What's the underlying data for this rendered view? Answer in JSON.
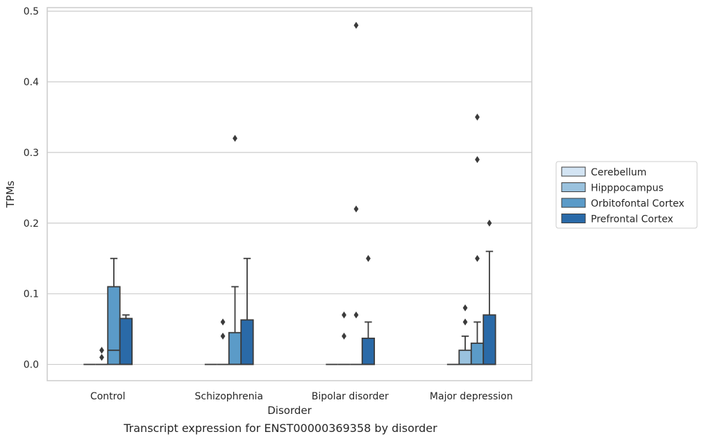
{
  "chart_data": {
    "type": "box",
    "caption": "Transcript expression for ENST00000369358 by disorder",
    "xlabel": "Disorder",
    "ylabel": "TPMs",
    "ylim": [
      -0.023,
      0.505
    ],
    "yticks": [
      0.0,
      0.1,
      0.2,
      0.3,
      0.4,
      0.5
    ],
    "ytick_labels": [
      "0.0",
      "0.1",
      "0.2",
      "0.3",
      "0.4",
      "0.5"
    ],
    "grid": true,
    "legend_position": "right",
    "categories": [
      "Control",
      "Schizophrenia",
      "Bipolar disorder",
      "Major depression"
    ],
    "series": [
      {
        "name": "Cerebellum",
        "color": "#d3e4f3",
        "boxes": [
          {
            "q1": 0,
            "median": 0,
            "q3": 0,
            "whisker_low": 0,
            "whisker_high": 0,
            "outliers": []
          },
          {
            "q1": 0,
            "median": 0,
            "q3": 0,
            "whisker_low": 0,
            "whisker_high": 0,
            "outliers": []
          },
          {
            "q1": 0,
            "median": 0,
            "q3": 0,
            "whisker_low": 0,
            "whisker_high": 0,
            "outliers": []
          },
          {
            "q1": 0,
            "median": 0,
            "q3": 0,
            "whisker_low": 0,
            "whisker_high": 0,
            "outliers": []
          }
        ]
      },
      {
        "name": "Hipppocampus",
        "color": "#9ac2de",
        "boxes": [
          {
            "q1": 0,
            "median": 0,
            "q3": 0,
            "whisker_low": 0,
            "whisker_high": 0,
            "outliers": [
              0.01,
              0.02
            ]
          },
          {
            "q1": 0,
            "median": 0,
            "q3": 0,
            "whisker_low": 0,
            "whisker_high": 0,
            "outliers": [
              0.04,
              0.06
            ]
          },
          {
            "q1": 0,
            "median": 0,
            "q3": 0,
            "whisker_low": 0,
            "whisker_high": 0,
            "outliers": [
              0.04,
              0.07
            ]
          },
          {
            "q1": 0,
            "median": 0,
            "q3": 0.02,
            "whisker_low": 0,
            "whisker_high": 0.04,
            "outliers": [
              0.06,
              0.08
            ]
          }
        ]
      },
      {
        "name": "Orbitofontal Cortex",
        "color": "#5b9bc8",
        "boxes": [
          {
            "q1": 0,
            "median": 0.02,
            "q3": 0.11,
            "whisker_low": 0,
            "whisker_high": 0.15,
            "outliers": []
          },
          {
            "q1": 0,
            "median": 0,
            "q3": 0.045,
            "whisker_low": 0,
            "whisker_high": 0.11,
            "outliers": [
              0.32
            ]
          },
          {
            "q1": 0,
            "median": 0,
            "q3": 0,
            "whisker_low": 0,
            "whisker_high": 0,
            "outliers": [
              0.07,
              0.22,
              0.48
            ]
          },
          {
            "q1": 0,
            "median": 0,
            "q3": 0.03,
            "whisker_low": 0,
            "whisker_high": 0.06,
            "outliers": [
              0.15,
              0.29,
              0.35
            ]
          }
        ]
      },
      {
        "name": "Prefrontal Cortex",
        "color": "#2a6aa8",
        "boxes": [
          {
            "q1": 0,
            "median": 0,
            "q3": 0.065,
            "whisker_low": 0,
            "whisker_high": 0.07,
            "outliers": []
          },
          {
            "q1": 0,
            "median": 0,
            "q3": 0.063,
            "whisker_low": 0,
            "whisker_high": 0.15,
            "outliers": []
          },
          {
            "q1": 0,
            "median": 0,
            "q3": 0.037,
            "whisker_low": 0,
            "whisker_high": 0.06,
            "outliers": [
              0.15
            ]
          },
          {
            "q1": 0,
            "median": 0,
            "q3": 0.07,
            "whisker_low": 0,
            "whisker_high": 0.16,
            "outliers": [
              0.2
            ]
          }
        ]
      }
    ]
  }
}
